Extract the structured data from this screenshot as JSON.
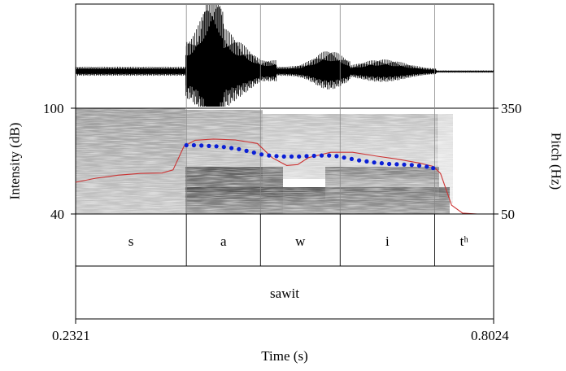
{
  "axes": {
    "intensity_label": "Intensity (dB)",
    "intensity_max": "100",
    "intensity_min": "40",
    "pitch_label": "Pitch (Hz)",
    "pitch_max": "350",
    "pitch_min": "50",
    "time_label": "Time (s)",
    "time_start": "0.2321",
    "time_end": "0.8024"
  },
  "segments": [
    {
      "label": "s",
      "start": 0.2321,
      "end": 0.3832
    },
    {
      "label": "a",
      "start": 0.3832,
      "end": 0.4843
    },
    {
      "label": "w",
      "start": 0.4843,
      "end": 0.593
    },
    {
      "label": "i",
      "start": 0.593,
      "end": 0.7219
    },
    {
      "label": "tʰ",
      "start": 0.7219,
      "end": 0.8024
    }
  ],
  "word": {
    "label": "sawit",
    "start": 0.2321,
    "end": 0.8024
  },
  "colors": {
    "intensity_curve": "#cc3333",
    "pitch_points": "#0a1fd6",
    "frame": "#000000",
    "boundary": "#888888"
  },
  "chart_data": {
    "type": "line",
    "x_unit": "s",
    "xlim": [
      0.2321,
      0.8024
    ],
    "series": [
      {
        "curve": "intensity",
        "y_unit": "dB",
        "ylim": [
          40,
          100
        ],
        "x": [
          0.2321,
          0.26,
          0.29,
          0.32,
          0.35,
          0.365,
          0.38,
          0.395,
          0.42,
          0.45,
          0.48,
          0.5,
          0.52,
          0.535,
          0.55,
          0.58,
          0.61,
          0.64,
          0.67,
          0.7,
          0.72,
          0.73,
          0.745,
          0.76,
          0.78,
          0.8024
        ],
        "values": [
          58,
          60.3,
          62,
          63,
          63.2,
          65,
          78.5,
          81.8,
          82.5,
          82,
          80,
          72,
          67.5,
          68,
          72,
          75,
          75,
          73,
          71.2,
          69,
          67,
          63,
          45,
          40.5,
          40,
          40
        ]
      },
      {
        "curve": "pitch",
        "y_unit": "Hz",
        "ylim": [
          50,
          350
        ],
        "x": [
          0.3832,
          0.3934,
          0.4037,
          0.4139,
          0.4242,
          0.4344,
          0.4447,
          0.4549,
          0.4652,
          0.4754,
          0.4857,
          0.4959,
          0.5062,
          0.5164,
          0.5267,
          0.5369,
          0.5472,
          0.5574,
          0.5677,
          0.5779,
          0.5882,
          0.5984,
          0.6087,
          0.6189,
          0.6292,
          0.6394,
          0.6497,
          0.6599,
          0.6702,
          0.6804,
          0.6907,
          0.7009,
          0.7112,
          0.72
        ],
        "values": [
          245,
          245,
          244,
          243,
          242,
          240,
          237,
          234,
          229,
          224,
          219,
          216,
          214,
          213,
          213,
          213,
          214,
          215,
          216,
          216,
          214,
          210,
          206,
          202,
          199,
          196,
          194,
          192,
          191,
          190,
          189,
          187,
          184,
          180
        ]
      }
    ]
  }
}
